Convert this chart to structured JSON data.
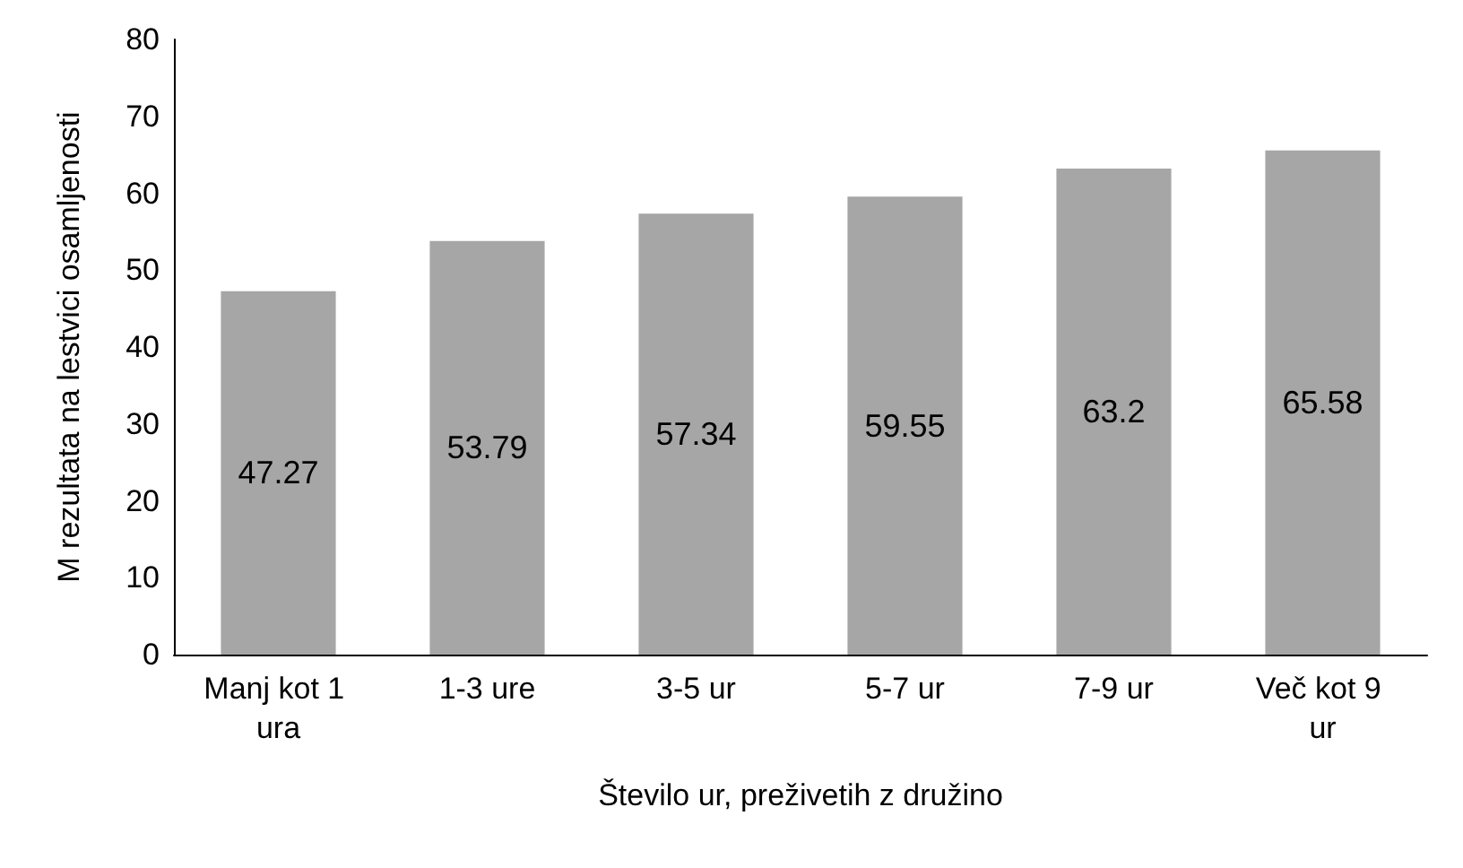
{
  "chart_data": {
    "type": "bar",
    "xlabel": "Število ur, preživetih z družino",
    "ylabel": "M rezultata na lestvici osamljenosti",
    "categories": [
      "Manj kot 1 ura",
      "1-3 ure",
      "3-5 ur",
      "5-7 ur",
      "7-9 ur",
      "Več kot 9 ur"
    ],
    "values": [
      47.27,
      53.79,
      57.34,
      59.55,
      63.2,
      65.58
    ],
    "color": "#a6a6a6",
    "ylim": [
      0,
      80
    ],
    "yticks": [
      0,
      10,
      20,
      30,
      40,
      50,
      60,
      70,
      80
    ],
    "grid": false,
    "data_labels": true
  }
}
